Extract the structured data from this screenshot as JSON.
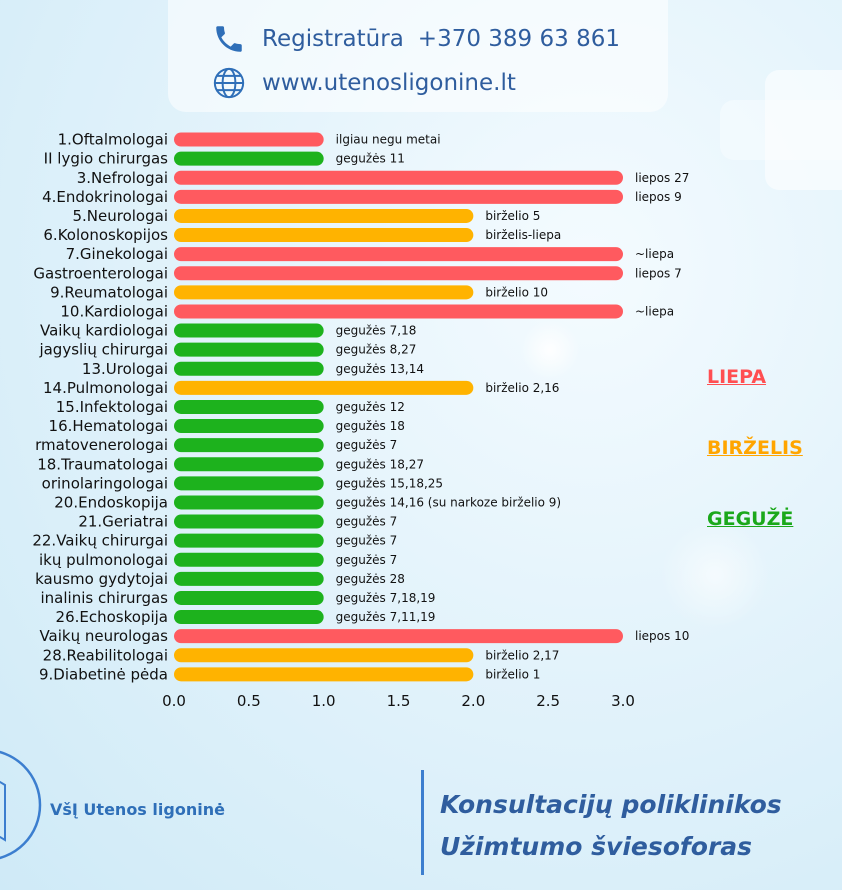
{
  "header": {
    "phone_label": "Registratūra",
    "phone_number": "+370 389 63 861",
    "website": "www.utenosligonine.lt",
    "phone_icon": "phone-icon",
    "globe_icon": "globe-icon"
  },
  "colors": {
    "red": "#FF5A5F",
    "orange": "#FFB300",
    "green": "#1DB21D"
  },
  "legend": [
    {
      "label": "LIEPA",
      "color": "#FF4F52"
    },
    {
      "label": "BIRŽELIS",
      "color": "#FFA500"
    },
    {
      "label": "GEGUŽĖ",
      "color": "#1BA81B"
    }
  ],
  "chart_data": {
    "type": "bar",
    "orientation": "horizontal",
    "categories": [
      "1.Oftalmologai",
      "II lygio chirurgas",
      "3.Nefrologai",
      "4.Endokrinologai",
      "5.Neurologai",
      "6.Kolonoskopijos",
      "7.Ginekologai",
      "Gastroenterologai",
      "9.Reumatologai",
      "10.Kardiologai",
      "Vaikų kardiologai",
      "jagyslių chirurgai",
      "13.Urologai",
      "14.Pulmonologai",
      "15.Infektologai",
      "16.Hematologai",
      "rmatovenerologai",
      "18.Traumatologai",
      "orinolaringologai",
      "20.Endoskopija",
      "21.Geriatrai",
      "22.Vaikų chirurgai",
      "ikų pulmonologai",
      "kausmo gydytojai",
      "inalinis chirurgas",
      "26.Echoskopija",
      "Vaikų neurologas",
      "28.Reabilitologai",
      "9.Diabetinė pėda"
    ],
    "values": [
      1,
      1,
      3,
      3,
      2,
      2,
      3,
      3,
      2,
      3,
      1,
      1,
      1,
      2,
      1,
      1,
      1,
      1,
      1,
      1,
      1,
      1,
      1,
      1,
      1,
      1,
      3,
      2,
      2
    ],
    "bar_colors": [
      "red",
      "green",
      "red",
      "red",
      "orange",
      "orange",
      "red",
      "red",
      "orange",
      "red",
      "green",
      "green",
      "green",
      "orange",
      "green",
      "green",
      "green",
      "green",
      "green",
      "green",
      "green",
      "green",
      "green",
      "green",
      "green",
      "green",
      "red",
      "orange",
      "orange"
    ],
    "data_labels": [
      "ilgiau negu metai",
      "gegužės 11",
      "liepos 27",
      "liepos 9",
      "birželio 5",
      "birželis-liepa",
      "~liepa",
      "liepos 7",
      "birželio 10",
      "~liepa",
      "gegužės 7,18",
      "gegužės 8,27",
      "gegužės 13,14",
      "birželio 2,16",
      "gegužės 12",
      "gegužės 18",
      "gegužės 7",
      "gegužės 18,27",
      "gegužės 15,18,25",
      "gegužės 14,16 (su narkoze birželio 9)",
      "gegužės 7",
      "gegužės 7",
      "gegužės 7",
      "gegužės 28",
      "gegužės 7,18,19",
      "gegužės 7,11,19",
      "liepos 10",
      "birželio 2,17",
      "birželio 1"
    ],
    "xlim": [
      0,
      3
    ],
    "xticks": [
      "0.0",
      "0.5",
      "1.0",
      "1.5",
      "2.0",
      "2.5",
      "3.0"
    ],
    "grid": false
  },
  "footer": {
    "org_name": "VšĮ Utenos ligoninė",
    "slogan_line1": "Konsultacijų poliklinikos",
    "slogan_line2": "Užimtumo šviesoforas"
  }
}
